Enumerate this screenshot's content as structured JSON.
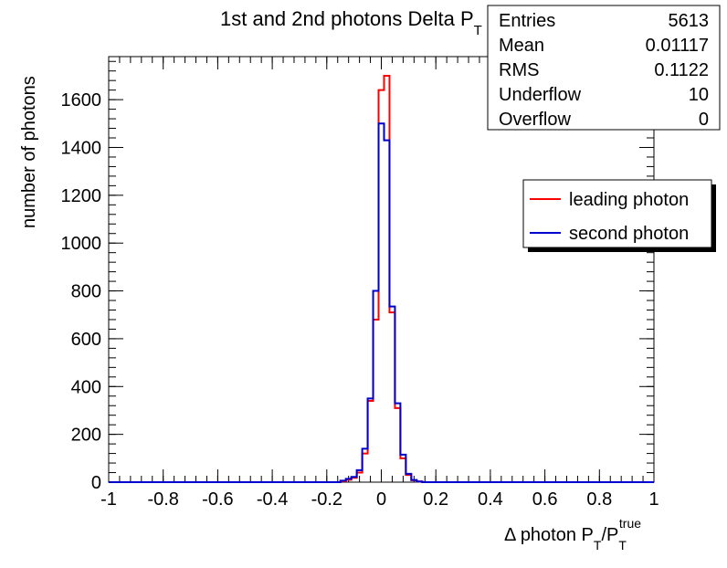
{
  "chart_data": {
    "type": "histogram",
    "title_main": "1st and 2nd photons Delta P",
    "title_sub": "T",
    "xlabel": {
      "prefix": "Δ photon P",
      "sub1": "T",
      "mid": "/P",
      "sub2": "T",
      "sup": "true"
    },
    "ylabel": "number of photons",
    "xlim": [
      -1,
      1
    ],
    "ylim": [
      0,
      1780
    ],
    "x_ticks": [
      -1,
      -0.8,
      -0.6,
      -0.4,
      -0.2,
      0,
      0.2,
      0.4,
      0.6,
      0.8,
      1
    ],
    "x_tick_labels": [
      "-1",
      "-0.8",
      "-0.6",
      "-0.4",
      "-0.2",
      "0",
      "0.2",
      "0.4",
      "0.6",
      "0.8",
      "1"
    ],
    "y_ticks": [
      0,
      200,
      400,
      600,
      800,
      1000,
      1200,
      1400,
      1600
    ],
    "y_tick_labels": [
      "0",
      "200",
      "400",
      "600",
      "800",
      "1000",
      "1200",
      "1400",
      "1600"
    ],
    "bin_edges_start": -0.15,
    "bin_width": 0.02,
    "series": [
      {
        "name": "leading photon",
        "color": "#ff0000",
        "values": [
          4,
          10,
          18,
          40,
          120,
          340,
          680,
          1640,
          1700,
          710,
          310,
          100,
          30,
          8,
          3
        ]
      },
      {
        "name": "second photon",
        "color": "#0000cc",
        "values": [
          6,
          14,
          22,
          50,
          140,
          350,
          800,
          1500,
          1430,
          735,
          330,
          115,
          35,
          9,
          3
        ]
      }
    ],
    "stats": {
      "rows": [
        {
          "label": "Entries",
          "value": "5613"
        },
        {
          "label": "Mean",
          "value": "0.01117"
        },
        {
          "label": "RMS",
          "value": "0.1122"
        },
        {
          "label": "Underflow",
          "value": "10"
        },
        {
          "label": "Overflow",
          "value": "0"
        }
      ]
    },
    "legend": {
      "placement": "right",
      "entries": [
        {
          "label": "leading photon",
          "color": "#ff0000"
        },
        {
          "label": "second photon",
          "color": "#0000cc"
        }
      ]
    }
  }
}
